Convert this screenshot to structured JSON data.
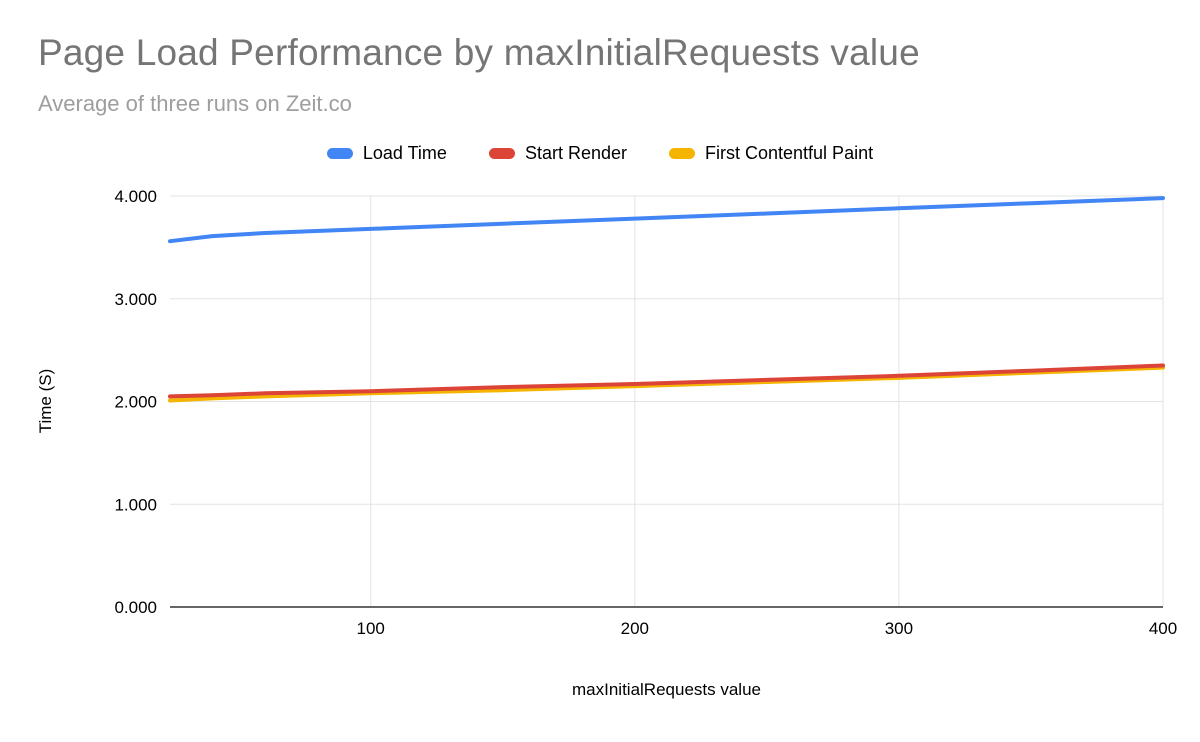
{
  "header": {
    "title": "Page Load Performance by maxInitialRequests value",
    "subtitle": "Average of three runs on Zeit.co"
  },
  "chart_data": {
    "type": "line",
    "title": "Page Load Performance by maxInitialRequests value",
    "subtitle": "Average of three runs on Zeit.co",
    "xlabel": "maxInitialRequests value",
    "ylabel": "Time (S)",
    "xlim": [
      24,
      400
    ],
    "ylim": [
      0,
      4
    ],
    "grid": true,
    "legend_position": "top",
    "x": [
      24,
      40,
      60,
      100,
      150,
      200,
      250,
      300,
      350,
      400
    ],
    "series": [
      {
        "name": "Load Time",
        "color": "#4285f4",
        "values": [
          3.56,
          3.61,
          3.64,
          3.68,
          3.73,
          3.78,
          3.83,
          3.88,
          3.93,
          3.98
        ]
      },
      {
        "name": "Start Render",
        "color": "#db4437",
        "values": [
          2.05,
          2.06,
          2.08,
          2.1,
          2.14,
          2.17,
          2.21,
          2.25,
          2.3,
          2.35
        ]
      },
      {
        "name": "First Contentful Paint",
        "color": "#f4b400",
        "values": [
          2.01,
          2.03,
          2.05,
          2.08,
          2.11,
          2.15,
          2.19,
          2.23,
          2.28,
          2.33
        ]
      }
    ],
    "x_ticks": [
      {
        "value": 100,
        "label": "100"
      },
      {
        "value": 200,
        "label": "200"
      },
      {
        "value": 300,
        "label": "300"
      },
      {
        "value": 400,
        "label": "400"
      }
    ],
    "y_ticks": [
      {
        "value": 0,
        "label": "0.000"
      },
      {
        "value": 1,
        "label": "1.000"
      },
      {
        "value": 2,
        "label": "2.000"
      },
      {
        "value": 3,
        "label": "3.000"
      },
      {
        "value": 4,
        "label": "4.000"
      }
    ],
    "colors": {
      "grid": "#e3e3e3",
      "baseline": "#333333",
      "title": "#757575",
      "subtitle": "#9e9e9e"
    }
  }
}
